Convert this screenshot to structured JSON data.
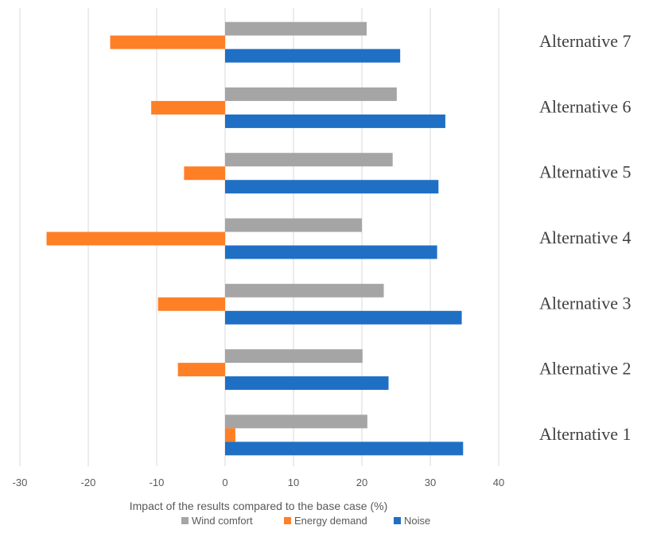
{
  "chart_data": {
    "type": "bar",
    "orientation": "horizontal",
    "categories": [
      "Alternative 1",
      "Alternative 2",
      "Alternative 3",
      "Alternative 4",
      "Alternative 5",
      "Alternative 6",
      "Alternative 7"
    ],
    "series": [
      {
        "name": "Wind comfort",
        "color": "#a5a5a5",
        "values": [
          20.8,
          20.1,
          23.2,
          20.0,
          24.5,
          25.1,
          20.7
        ]
      },
      {
        "name": "Energy demand",
        "color": "#ff7f27",
        "values": [
          1.5,
          -6.9,
          -9.8,
          -26.1,
          -6.0,
          -10.8,
          -16.8
        ]
      },
      {
        "name": "Noise",
        "color": "#1f6fc5",
        "values": [
          34.8,
          23.9,
          34.6,
          31.0,
          31.2,
          32.2,
          25.6
        ]
      }
    ],
    "xlabel": "Impact of the results compared to the base case (%)",
    "xlim": [
      -30,
      40
    ],
    "xticks": [
      -30,
      -20,
      -10,
      0,
      10,
      20,
      30,
      40
    ],
    "grid": true,
    "legend": "bottom"
  }
}
